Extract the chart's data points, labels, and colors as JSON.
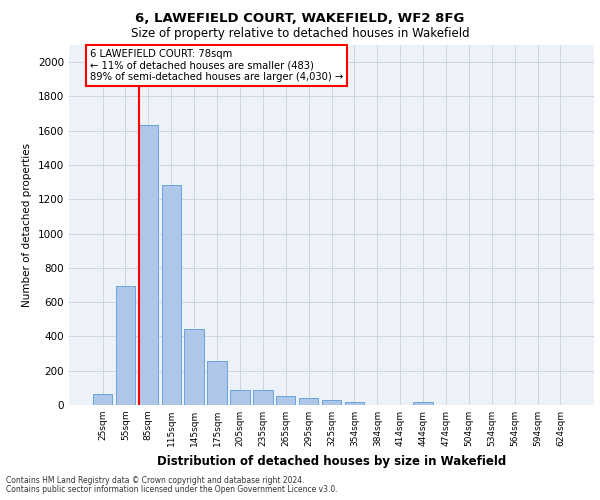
{
  "title_line1": "6, LAWEFIELD COURT, WAKEFIELD, WF2 8FG",
  "title_line2": "Size of property relative to detached houses in Wakefield",
  "xlabel": "Distribution of detached houses by size in Wakefield",
  "ylabel": "Number of detached properties",
  "categories": [
    "25sqm",
    "55sqm",
    "85sqm",
    "115sqm",
    "145sqm",
    "175sqm",
    "205sqm",
    "235sqm",
    "265sqm",
    "295sqm",
    "325sqm",
    "354sqm",
    "384sqm",
    "414sqm",
    "444sqm",
    "474sqm",
    "504sqm",
    "534sqm",
    "564sqm",
    "594sqm",
    "624sqm"
  ],
  "values": [
    65,
    695,
    1635,
    1285,
    445,
    255,
    90,
    90,
    50,
    40,
    30,
    20,
    0,
    0,
    20,
    0,
    0,
    0,
    0,
    0,
    0
  ],
  "bar_color": "#aec6e8",
  "bar_edge_color": "#5b9bd5",
  "grid_color": "#c8d0dc",
  "vline_color": "red",
  "vline_pos": 1.6,
  "annotation_text_line1": "6 LAWEFIELD COURT: 78sqm",
  "annotation_text_line2": "← 11% of detached houses are smaller (483)",
  "annotation_text_line3": "89% of semi-detached houses are larger (4,030) →",
  "annotation_box_color": "white",
  "annotation_box_edge_color": "red",
  "ylim": [
    0,
    2100
  ],
  "yticks": [
    0,
    200,
    400,
    600,
    800,
    1000,
    1200,
    1400,
    1600,
    1800,
    2000
  ],
  "footer_line1": "Contains HM Land Registry data © Crown copyright and database right 2024.",
  "footer_line2": "Contains public sector information licensed under the Open Government Licence v3.0.",
  "bg_color": "#edf1f8"
}
